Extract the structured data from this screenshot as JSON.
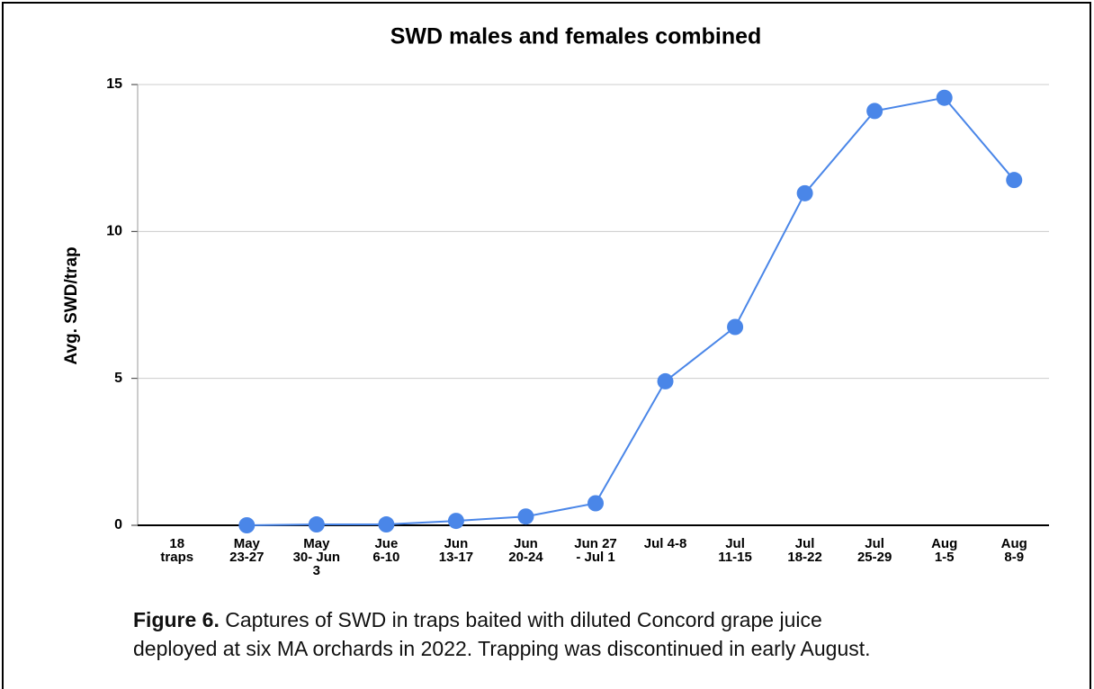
{
  "chart_data": {
    "type": "line",
    "title": "SWD males and females combined",
    "y_label": "Avg. SWD/trap",
    "categories": [
      "18\ntraps",
      "May\n23-27",
      "May\n30- Jun\n3",
      "Jue\n6-10",
      "Jun\n13-17",
      "Jun\n20-24",
      "Jun 27\n- Jul 1",
      "Jul 4-8",
      "Jul\n11-15",
      "Jul\n18-22",
      "Jul\n25-29",
      "Aug\n1-5",
      "Aug\n8-9"
    ],
    "series": [
      {
        "name": "Avg. SWD/trap",
        "color": "#4a86e8",
        "values": [
          null,
          0,
          0.03,
          0.03,
          0.15,
          0.3,
          0.75,
          4.9,
          6.75,
          11.3,
          14.1,
          14.55,
          11.75
        ]
      }
    ],
    "ylim": [
      0,
      15
    ],
    "yticks": [
      0,
      5,
      10,
      15
    ],
    "grid": true,
    "caption_label": "Figure 6.",
    "caption": [
      "Captures of SWD in traps baited with diluted Concord grape juice",
      "deployed at six MA orchards in 2022. Trapping was discontinued in early August."
    ]
  }
}
